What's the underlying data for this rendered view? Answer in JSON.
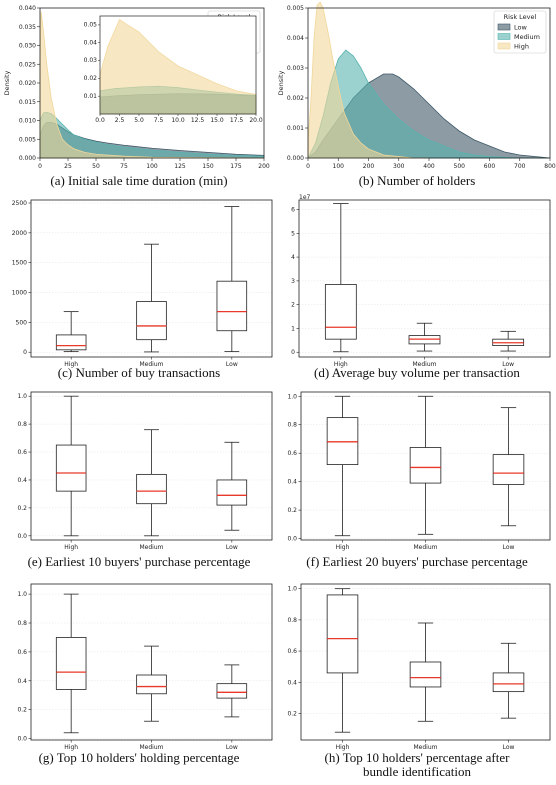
{
  "chart_data": [
    {
      "type": "area",
      "id": "a",
      "caption": "(a) Initial sale time duration (min)",
      "ylabel": "Density",
      "xlim": [
        0,
        200
      ],
      "ylim": [
        0,
        0.04
      ],
      "xticks": [
        0,
        25,
        50,
        75,
        100,
        125,
        150,
        175,
        200
      ],
      "yticks": [
        0.0,
        0.005,
        0.01,
        0.015,
        0.02,
        0.025,
        0.03,
        0.035,
        0.04
      ],
      "legend": {
        "title": "Risk Level",
        "position": "top-right"
      },
      "series": [
        {
          "name": "Low",
          "color": "#3f5968",
          "x": [
            0,
            3,
            6,
            10,
            15,
            20,
            25,
            30,
            40,
            50,
            60,
            75,
            100,
            125,
            150,
            175,
            200
          ],
          "y": [
            0.006,
            0.0085,
            0.0095,
            0.0095,
            0.009,
            0.008,
            0.007,
            0.0062,
            0.0052,
            0.0045,
            0.004,
            0.0034,
            0.0026,
            0.002,
            0.0015,
            0.001,
            0.0007
          ]
        },
        {
          "name": "Medium",
          "color": "#58b3ae",
          "x": [
            0,
            3,
            6,
            10,
            15,
            20,
            25,
            30,
            40,
            50,
            60,
            75,
            100,
            125,
            150,
            175,
            200
          ],
          "y": [
            0.01,
            0.012,
            0.0122,
            0.0118,
            0.0105,
            0.009,
            0.0075,
            0.0062,
            0.005,
            0.0042,
            0.0036,
            0.0029,
            0.0021,
            0.0015,
            0.001,
            0.0007,
            0.0005
          ]
        },
        {
          "name": "High",
          "color": "#f1d79a",
          "x": [
            0,
            1,
            3,
            6,
            10,
            15,
            20,
            25,
            30,
            40,
            50,
            75,
            100,
            150,
            200
          ],
          "y": [
            0.025,
            0.039,
            0.034,
            0.025,
            0.016,
            0.009,
            0.005,
            0.0035,
            0.0025,
            0.0015,
            0.001,
            0.0005,
            0.0002,
            0.0001,
            0.0
          ]
        }
      ],
      "inset": {
        "xlim": [
          0,
          20
        ],
        "ylim": [
          0,
          0.055
        ],
        "xticks": [
          0.0,
          2.5,
          5.0,
          7.5,
          10.0,
          12.5,
          15.0,
          17.5,
          20.0
        ],
        "xtick_labels": [
          "0.0",
          "2.5",
          "5.0",
          "7.5",
          "10.0",
          "12.5",
          "15.0",
          "17.5",
          "20.0"
        ],
        "yticks": [
          0.01,
          0.02,
          0.03,
          0.04,
          0.05
        ],
        "ytick_labels": [
          "0.01",
          "0.02",
          "0.03",
          "0.04",
          "0.05"
        ],
        "series": [
          {
            "name": "Low",
            "color": "#3f5968",
            "x": [
              0,
              2,
              5,
              8,
              10,
              12.5,
              15,
              17.5,
              20
            ],
            "y": [
              0.0095,
              0.0102,
              0.0108,
              0.0112,
              0.0114,
              0.0113,
              0.0111,
              0.0107,
              0.0102
            ]
          },
          {
            "name": "Medium",
            "color": "#58b3ae",
            "x": [
              0,
              2,
              5,
              7.5,
              10,
              12.5,
              15,
              17.5,
              20
            ],
            "y": [
              0.013,
              0.0143,
              0.0152,
              0.0156,
              0.0148,
              0.0135,
              0.0122,
              0.0112,
              0.0105
            ]
          },
          {
            "name": "High",
            "color": "#f1d79a",
            "x": [
              0,
              1,
              2.5,
              5,
              7.5,
              10,
              12.5,
              15,
              17.5,
              20
            ],
            "y": [
              0.022,
              0.038,
              0.053,
              0.046,
              0.035,
              0.027,
              0.022,
              0.017,
              0.013,
              0.011
            ]
          }
        ]
      }
    },
    {
      "type": "area",
      "id": "b",
      "caption": "(b) Number of holders",
      "ylabel": "Density",
      "xlim": [
        0,
        800
      ],
      "ylim": [
        0,
        0.005
      ],
      "xticks": [
        0,
        100,
        200,
        300,
        400,
        500,
        600,
        700,
        800
      ],
      "yticks": [
        0.0,
        0.001,
        0.002,
        0.003,
        0.004,
        0.005
      ],
      "ytick_labels": [
        "0.000",
        "0.001",
        "0.002",
        "0.003",
        "0.004",
        "0.005"
      ],
      "legend": {
        "title": "Risk Level",
        "position": "top-right"
      },
      "series": [
        {
          "name": "Low",
          "color": "#3f5968",
          "x": [
            0,
            25,
            50,
            100,
            150,
            200,
            250,
            280,
            300,
            350,
            400,
            450,
            500,
            550,
            600,
            650,
            700,
            750,
            800
          ],
          "y": [
            0.0,
            0.0002,
            0.0006,
            0.0013,
            0.002,
            0.0025,
            0.0028,
            0.0028,
            0.0027,
            0.0023,
            0.0018,
            0.0013,
            0.0009,
            0.0006,
            0.0004,
            0.0002,
            0.0001,
            5e-05,
            0.0
          ]
        },
        {
          "name": "Medium",
          "color": "#58b3ae",
          "x": [
            0,
            25,
            50,
            75,
            100,
            125,
            150,
            175,
            200,
            250,
            300,
            350,
            400,
            450,
            500,
            550,
            600,
            700,
            800
          ],
          "y": [
            0.0,
            0.0005,
            0.0014,
            0.0025,
            0.0033,
            0.0036,
            0.0034,
            0.003,
            0.0025,
            0.0018,
            0.0013,
            0.0009,
            0.0006,
            0.0004,
            0.0002,
            0.0001,
            5e-05,
            0.0,
            0.0
          ]
        },
        {
          "name": "High",
          "color": "#f1d79a",
          "x": [
            0,
            10,
            20,
            30,
            40,
            50,
            60,
            70,
            80,
            100,
            120,
            150,
            175,
            200,
            250,
            300,
            350,
            400
          ],
          "y": [
            0.0005,
            0.002,
            0.004,
            0.0051,
            0.0052,
            0.005,
            0.0045,
            0.004,
            0.0034,
            0.0024,
            0.0015,
            0.0008,
            0.0005,
            0.0003,
            0.0001,
            5e-05,
            0.0,
            0.0
          ]
        }
      ]
    },
    {
      "type": "box",
      "id": "c",
      "caption": "(c) Number of buy transactions",
      "categories": [
        "High",
        "Medium",
        "Low"
      ],
      "ylim": [
        -80,
        2550
      ],
      "yticks": [
        0,
        500,
        1000,
        1500,
        2000,
        2500
      ],
      "ytick_labels": [
        "0",
        "500",
        "1000",
        "1500",
        "2000",
        "2500"
      ],
      "boxes": [
        {
          "whislo": 10,
          "q1": 40,
          "med": 110,
          "q3": 290,
          "whishi": 680
        },
        {
          "whislo": 5,
          "q1": 210,
          "med": 440,
          "q3": 850,
          "whishi": 1810
        },
        {
          "whislo": 10,
          "q1": 360,
          "med": 680,
          "q3": 1190,
          "whishi": 2440
        }
      ]
    },
    {
      "type": "box",
      "id": "d",
      "caption": "(d) Average buy volume per transaction",
      "exponent_label": "1e7",
      "categories": [
        "High",
        "Medium",
        "Low"
      ],
      "ylim": [
        -0.2,
        6.4
      ],
      "yticks": [
        0,
        1,
        2,
        3,
        4,
        5,
        6
      ],
      "ytick_labels": [
        "0",
        "1",
        "2",
        "3",
        "4",
        "5",
        "6"
      ],
      "boxes": [
        {
          "whislo": 0.02,
          "q1": 0.55,
          "med": 1.05,
          "q3": 2.85,
          "whishi": 6.25
        },
        {
          "whislo": 0.05,
          "q1": 0.35,
          "med": 0.55,
          "q3": 0.7,
          "whishi": 1.22
        },
        {
          "whislo": 0.05,
          "q1": 0.28,
          "med": 0.4,
          "q3": 0.55,
          "whishi": 0.88
        }
      ]
    },
    {
      "type": "box",
      "id": "e",
      "caption": "(e) Earliest 10 buyers' purchase percentage",
      "categories": [
        "High",
        "Medium",
        "Low"
      ],
      "ylim": [
        -0.03,
        1.03
      ],
      "yticks": [
        0.0,
        0.2,
        0.4,
        0.6,
        0.8,
        1.0
      ],
      "ytick_labels": [
        "0.0",
        "0.2",
        "0.4",
        "0.6",
        "0.8",
        "1.0"
      ],
      "boxes": [
        {
          "whislo": 0.0,
          "q1": 0.32,
          "med": 0.45,
          "q3": 0.65,
          "whishi": 1.0
        },
        {
          "whislo": 0.0,
          "q1": 0.23,
          "med": 0.32,
          "q3": 0.44,
          "whishi": 0.76
        },
        {
          "whislo": 0.04,
          "q1": 0.22,
          "med": 0.29,
          "q3": 0.4,
          "whishi": 0.67
        }
      ]
    },
    {
      "type": "box",
      "id": "f",
      "caption": "(f) Earliest 20 buyers' purchase percentage",
      "categories": [
        "High",
        "Medium",
        "Low"
      ],
      "ylim": [
        -0.01,
        1.03
      ],
      "yticks": [
        0.0,
        0.2,
        0.4,
        0.6,
        0.8,
        1.0
      ],
      "ytick_labels": [
        "0.0",
        "0.2",
        "0.4",
        "0.6",
        "0.8",
        "1.0"
      ],
      "boxes": [
        {
          "whislo": 0.02,
          "q1": 0.52,
          "med": 0.68,
          "q3": 0.85,
          "whishi": 1.0
        },
        {
          "whislo": 0.03,
          "q1": 0.39,
          "med": 0.5,
          "q3": 0.64,
          "whishi": 1.0
        },
        {
          "whislo": 0.09,
          "q1": 0.38,
          "med": 0.46,
          "q3": 0.59,
          "whishi": 0.92
        }
      ]
    },
    {
      "type": "box",
      "id": "g",
      "caption": "(g) Top 10 holders' holding percentage",
      "categories": [
        "High",
        "Medium",
        "Low"
      ],
      "ylim": [
        -0.01,
        1.07
      ],
      "yticks": [
        0.0,
        0.2,
        0.4,
        0.6,
        0.8,
        1.0
      ],
      "ytick_labels": [
        "0.0",
        "0.2",
        "0.4",
        "0.6",
        "0.8",
        "1.0"
      ],
      "boxes": [
        {
          "whislo": 0.04,
          "q1": 0.34,
          "med": 0.46,
          "q3": 0.7,
          "whishi": 1.0
        },
        {
          "whislo": 0.12,
          "q1": 0.31,
          "med": 0.36,
          "q3": 0.44,
          "whishi": 0.64
        },
        {
          "whislo": 0.15,
          "q1": 0.28,
          "med": 0.32,
          "q3": 0.38,
          "whishi": 0.51
        }
      ]
    },
    {
      "type": "box",
      "id": "h",
      "caption": "(h) Top 10 holders' percentage after bundle identification",
      "categories": [
        "High",
        "Medium",
        "Low"
      ],
      "ylim": [
        0.03,
        1.03
      ],
      "yticks": [
        0.2,
        0.4,
        0.6,
        0.8,
        1.0
      ],
      "ytick_labels": [
        "0.2",
        "0.4",
        "0.6",
        "0.8",
        "1.0"
      ],
      "boxes": [
        {
          "whislo": 0.08,
          "q1": 0.46,
          "med": 0.68,
          "q3": 0.96,
          "whishi": 1.0
        },
        {
          "whislo": 0.15,
          "q1": 0.37,
          "med": 0.43,
          "q3": 0.53,
          "whishi": 0.78
        },
        {
          "whislo": 0.17,
          "q1": 0.34,
          "med": 0.39,
          "q3": 0.46,
          "whishi": 0.65
        }
      ]
    }
  ]
}
